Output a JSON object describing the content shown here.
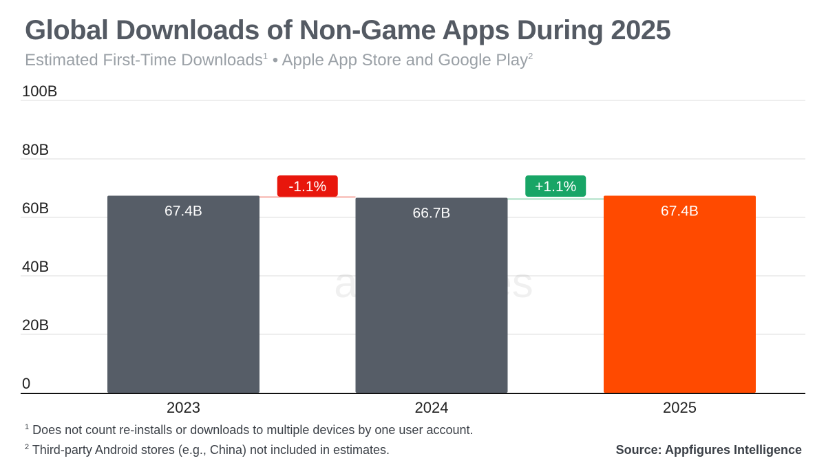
{
  "chart_data": {
    "type": "bar",
    "title": "Global Downloads of Non-Game Apps During 2025",
    "subtitle": {
      "part1": "Estimated First-Time Downloads",
      "sup1": "1",
      "part2": " • Apple App Store and Google Play",
      "sup2": "2"
    },
    "categories": [
      "2023",
      "2024",
      "2025"
    ],
    "values": [
      67.4,
      66.7,
      67.4
    ],
    "data_labels": [
      "67.4B",
      "66.7B",
      "67.4B"
    ],
    "bar_colors": [
      "#565d67",
      "#565d67",
      "#ff4a00"
    ],
    "y_ticks": [
      0,
      20,
      40,
      60,
      80,
      100
    ],
    "y_tick_labels": [
      "0",
      "20B",
      "40B",
      "60B",
      "80B",
      "100B"
    ],
    "ylim": [
      0,
      100
    ],
    "grid": true,
    "changes": [
      {
        "label": "-1.1%",
        "color": "#e8160c",
        "line_color": "#f9c9c4"
      },
      {
        "label": "+1.1%",
        "color": "#18a566",
        "line_color": "#c6e9d7"
      }
    ],
    "watermark": "appfigures"
  },
  "footnotes": [
    {
      "mark": "1",
      "text": "Does not count re-installs or downloads to multiple devices by one user account."
    },
    {
      "mark": "2",
      "text": "Third-party Android stores (e.g., China) not included in estimates."
    }
  ],
  "source": "Source: Appfigures Intelligence"
}
